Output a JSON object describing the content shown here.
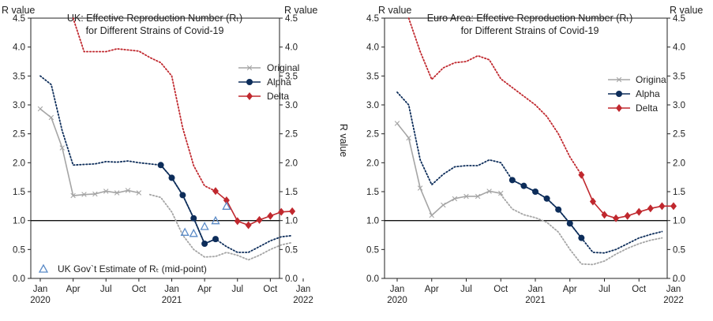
{
  "chart_data": [
    {
      "type": "line",
      "title_lines": [
        "UK: Effective Reproduction Number (Rₜ)",
        "for Different Strains of Covid-19"
      ],
      "ylabel_left": "R value",
      "ylabel_top_right": "R value",
      "ylabel_right_vertical": "R value",
      "ylim": [
        0,
        4.5
      ],
      "yticks": [
        "0.0",
        "0.5",
        "1.0",
        "1.5",
        "2.0",
        "2.5",
        "3.0",
        "3.5",
        "4.0",
        "4.5"
      ],
      "xticks": [
        {
          "line1": "Jan",
          "line2": "2020"
        },
        {
          "line1": "Apr",
          "line2": ""
        },
        {
          "line1": "Jul",
          "line2": ""
        },
        {
          "line1": "Oct",
          "line2": ""
        },
        {
          "line1": "Jan",
          "line2": "2021"
        },
        {
          "line1": "Apr",
          "line2": ""
        },
        {
          "line1": "Jul",
          "line2": ""
        },
        {
          "line1": "Oct",
          "line2": ""
        },
        {
          "line1": "Jan",
          "line2": "2022"
        }
      ],
      "reference_line": 1.0,
      "legend": [
        "Original",
        "Alpha",
        "Delta"
      ],
      "series": [
        {
          "name": "Original",
          "color": "#a5a5a5",
          "solid_x": [
            0,
            1,
            2,
            3,
            4,
            5,
            6,
            7,
            8,
            9,
            10
          ],
          "solid_y": [
            2.93,
            2.78,
            2.26,
            1.43,
            1.45,
            1.46,
            1.51,
            1.48,
            1.52,
            1.48,
            null
          ],
          "dotted_x": [
            10,
            11,
            12,
            13,
            14,
            15,
            16,
            17,
            18,
            19,
            20,
            21,
            22,
            23
          ],
          "dotted_y": [
            1.45,
            1.4,
            1.15,
            0.75,
            0.5,
            0.37,
            0.38,
            0.45,
            0.4,
            0.32,
            0.4,
            0.5,
            0.58,
            0.62
          ]
        },
        {
          "name": "Alpha",
          "color": "#0d2d5a",
          "solid_x": [
            11,
            12,
            13,
            14,
            15,
            16
          ],
          "solid_y": [
            1.96,
            1.74,
            1.44,
            1.04,
            0.6,
            0.68
          ],
          "dotted_x": [
            0,
            1,
            2,
            3,
            4,
            5,
            6,
            7,
            8,
            9,
            10,
            11,
            12,
            13,
            14,
            15,
            16,
            17,
            18,
            19,
            20,
            21,
            22,
            23
          ],
          "dotted_y": [
            3.5,
            3.35,
            2.55,
            1.96,
            1.97,
            1.98,
            2.02,
            2.01,
            2.03,
            2.0,
            1.98,
            1.96,
            1.74,
            1.44,
            1.04,
            0.6,
            0.68,
            0.55,
            0.45,
            0.45,
            0.55,
            0.65,
            0.72,
            0.74
          ]
        },
        {
          "name": "Delta",
          "color": "#c0282e",
          "solid_x": [
            16,
            17,
            18,
            19,
            20,
            21,
            22,
            23
          ],
          "solid_y": [
            1.51,
            1.35,
            0.99,
            0.92,
            1.01,
            1.08,
            1.15,
            1.16
          ],
          "dotted_x": [
            3,
            4,
            5,
            6,
            7,
            8,
            9,
            10,
            11,
            12,
            13,
            14,
            15,
            16
          ],
          "dotted_y": [
            4.5,
            3.92,
            3.92,
            3.92,
            3.97,
            3.95,
            3.93,
            3.82,
            3.73,
            3.5,
            2.6,
            1.95,
            1.6,
            1.51
          ]
        }
      ],
      "gov_estimate": {
        "label": "UK Gov`t Estimate of Rₜ (mid-point)",
        "color": "#5b8bc7",
        "x": [
          13.2,
          14,
          15,
          16,
          17
        ],
        "y": [
          0.8,
          0.78,
          0.9,
          1.0,
          1.25
        ]
      }
    },
    {
      "type": "line",
      "title_lines": [
        "Euro Area: Effective Reproduction Number (Rₜ)",
        "for Different Strains of Covid-19"
      ],
      "ylabel_left": "R value",
      "ylabel_top_right": "R value",
      "ylim": [
        0,
        4.5
      ],
      "yticks": [
        "0.0",
        "0.5",
        "1.0",
        "1.5",
        "2.0",
        "2.5",
        "3.0",
        "3.5",
        "4.0",
        "4.5"
      ],
      "xticks": [
        {
          "line1": "Jan",
          "line2": "2020"
        },
        {
          "line1": "Apr",
          "line2": ""
        },
        {
          "line1": "Jul",
          "line2": ""
        },
        {
          "line1": "Oct",
          "line2": ""
        },
        {
          "line1": "Jan",
          "line2": "2021"
        },
        {
          "line1": "Apr",
          "line2": ""
        },
        {
          "line1": "Jul",
          "line2": ""
        },
        {
          "line1": "Oct",
          "line2": ""
        },
        {
          "line1": "Jan",
          "line2": "2022"
        }
      ],
      "reference_line": 1.0,
      "legend": [
        "Original",
        "Alpha",
        "Delta"
      ],
      "series": [
        {
          "name": "Original",
          "color": "#a5a5a5",
          "solid_x": [
            0,
            1,
            2,
            3,
            4,
            5,
            6,
            7,
            8,
            9
          ],
          "solid_y": [
            2.68,
            2.43,
            1.56,
            1.09,
            1.27,
            1.38,
            1.42,
            1.42,
            1.51,
            1.47
          ],
          "dotted_x": [
            9,
            10,
            11,
            12,
            13,
            14,
            15,
            16,
            17,
            18,
            19,
            20,
            21,
            22,
            23
          ],
          "dotted_y": [
            1.45,
            1.2,
            1.1,
            1.05,
            0.97,
            0.8,
            0.5,
            0.25,
            0.24,
            0.3,
            0.42,
            0.52,
            0.6,
            0.66,
            0.7
          ]
        },
        {
          "name": "Alpha",
          "color": "#0d2d5a",
          "solid_x": [
            10,
            11,
            12,
            13,
            14,
            15,
            16
          ],
          "solid_y": [
            1.7,
            1.6,
            1.5,
            1.38,
            1.19,
            0.95,
            0.7
          ],
          "dotted_x": [
            0,
            1,
            2,
            3,
            4,
            5,
            6,
            7,
            8,
            9,
            10,
            11,
            12,
            13,
            14,
            15,
            16,
            17,
            18,
            19,
            20,
            21,
            22,
            23
          ],
          "dotted_y": [
            3.22,
            3.0,
            2.05,
            1.62,
            1.8,
            1.93,
            1.95,
            1.95,
            2.05,
            2.0,
            1.7,
            1.6,
            1.5,
            1.38,
            1.19,
            0.95,
            0.7,
            0.45,
            0.44,
            0.5,
            0.6,
            0.7,
            0.76,
            0.81
          ]
        },
        {
          "name": "Delta",
          "color": "#c0282e",
          "solid_x": [
            16,
            17,
            18,
            19,
            20,
            21,
            22,
            23,
            24
          ],
          "solid_y": [
            1.79,
            1.33,
            1.1,
            1.04,
            1.08,
            1.15,
            1.21,
            1.25,
            1.25
          ],
          "dotted_x": [
            1,
            2,
            3,
            4,
            5,
            6,
            7,
            8,
            9,
            10,
            11,
            12,
            13,
            14,
            15,
            16
          ],
          "dotted_y": [
            4.5,
            3.92,
            3.44,
            3.64,
            3.73,
            3.75,
            3.85,
            3.78,
            3.45,
            3.3,
            3.15,
            3.0,
            2.8,
            2.5,
            2.1,
            1.79
          ]
        }
      ]
    }
  ]
}
